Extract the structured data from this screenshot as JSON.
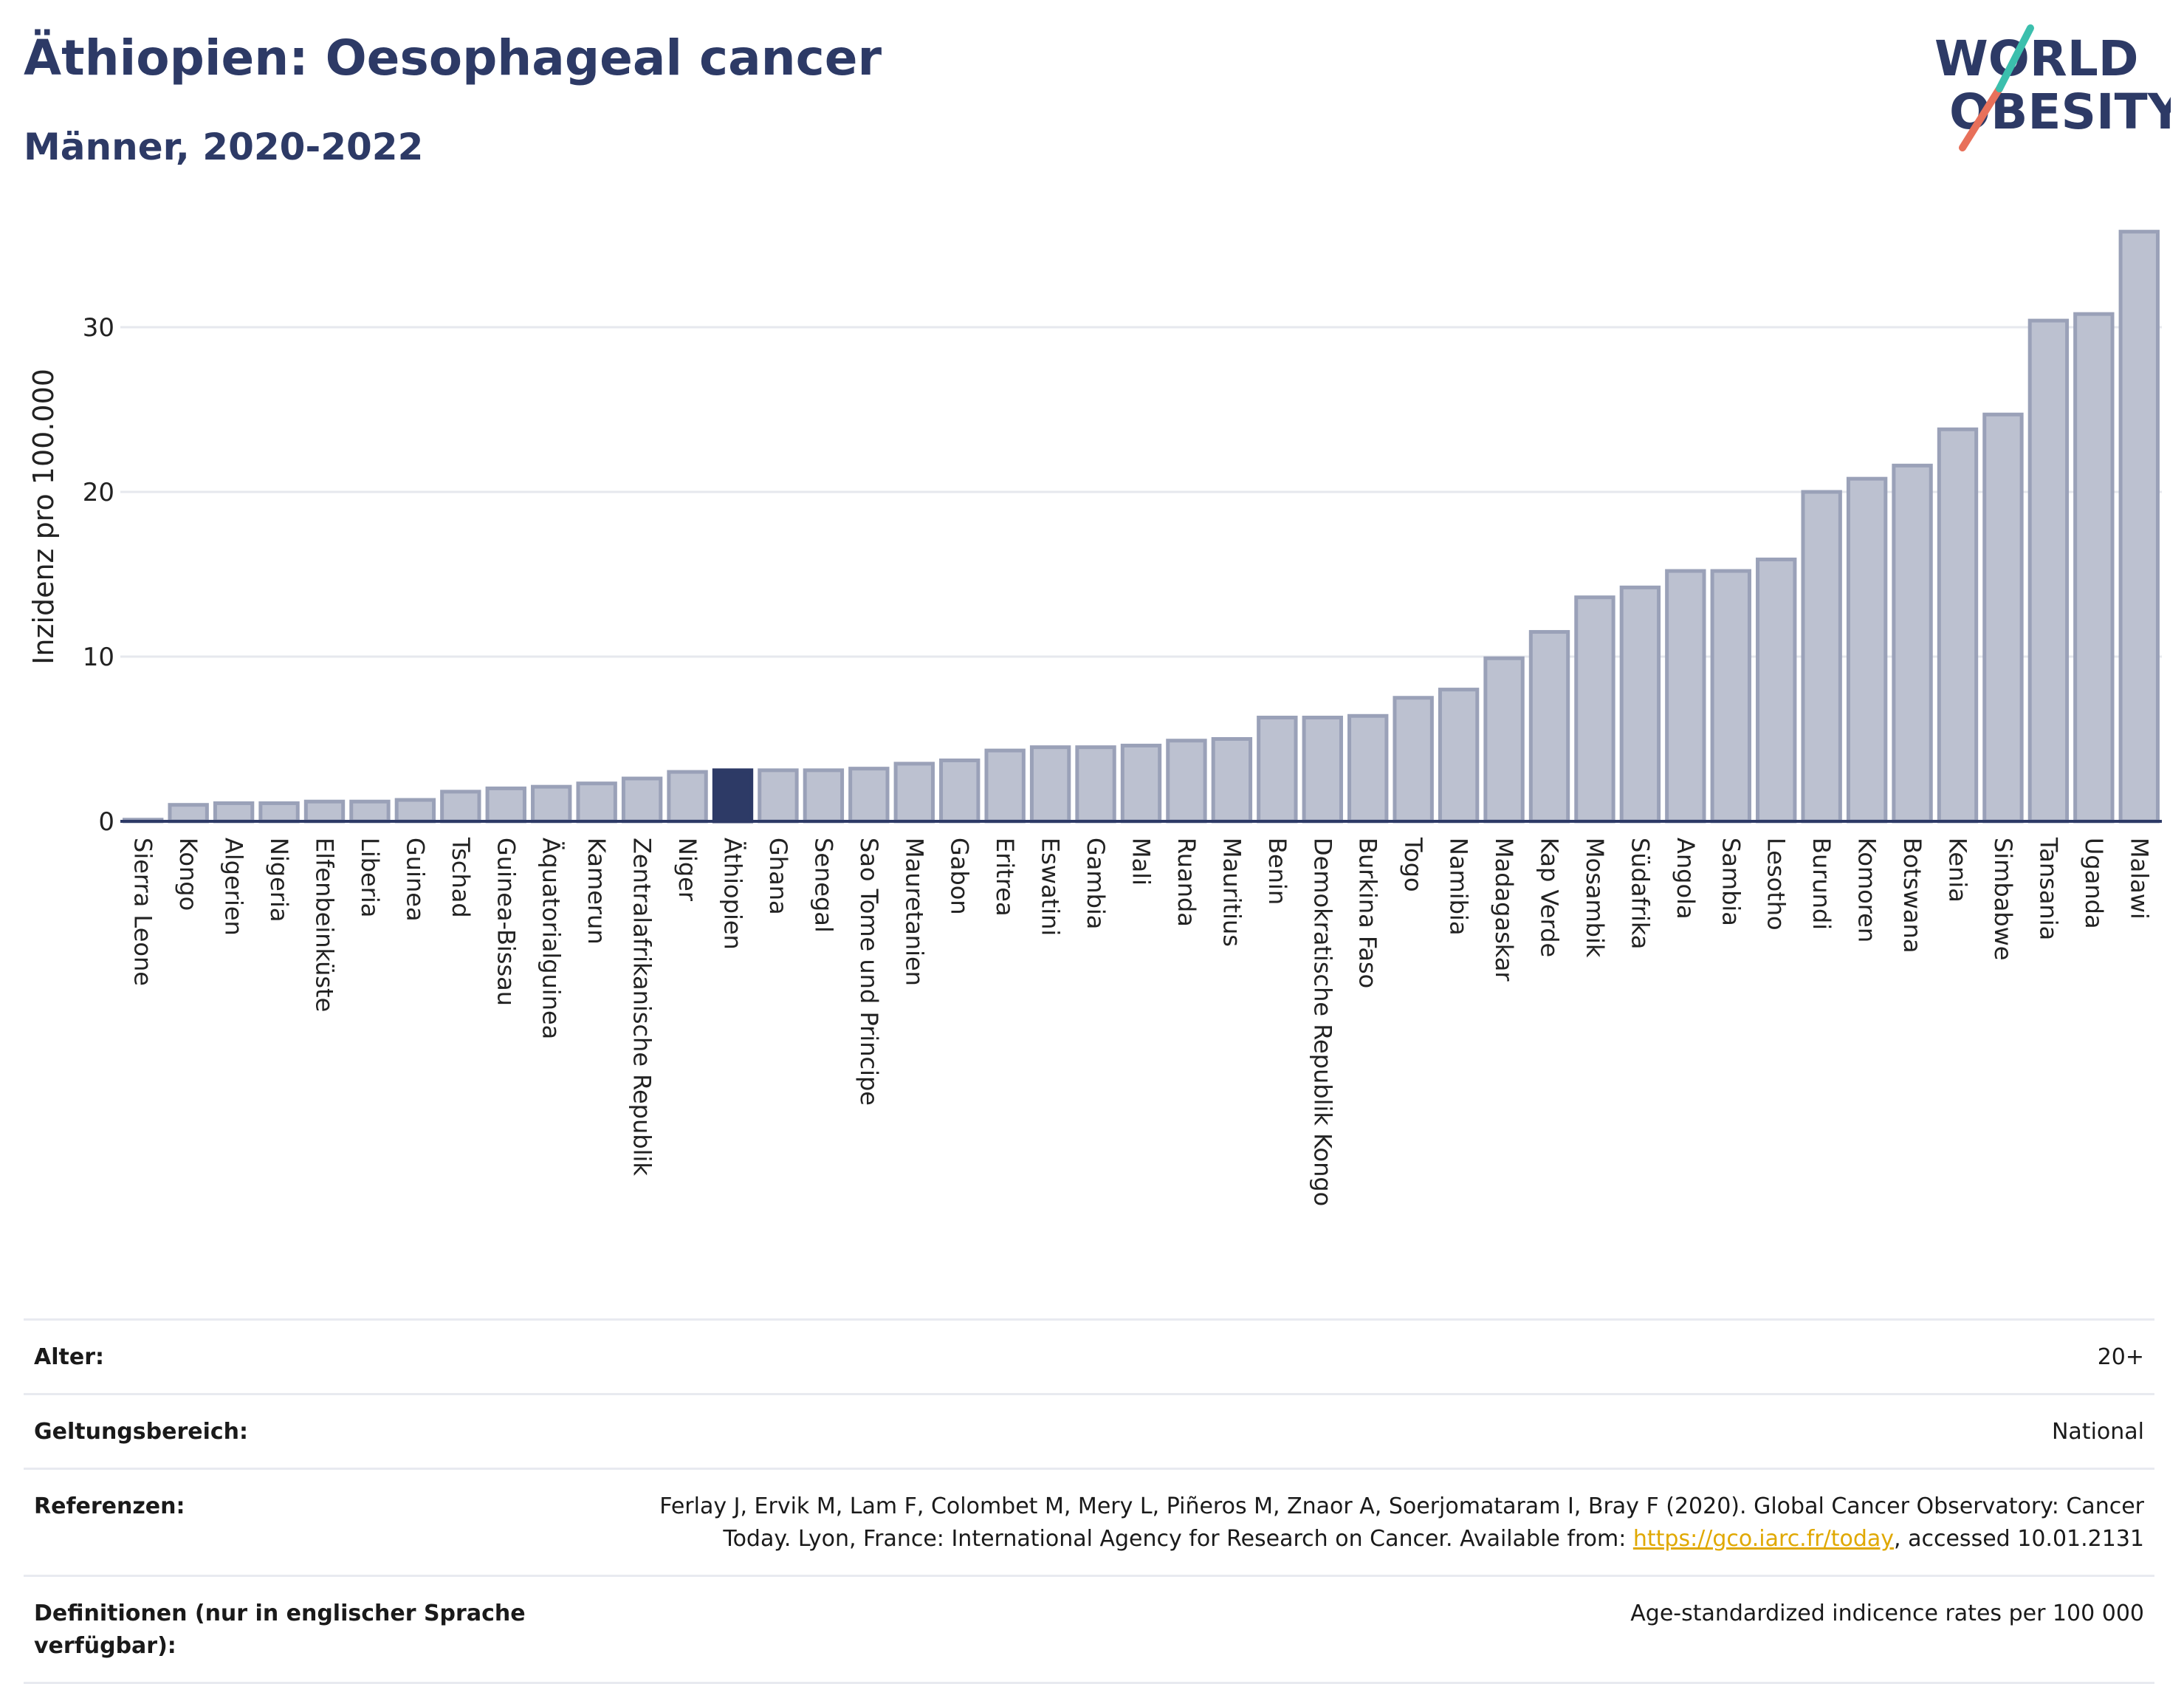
{
  "header": {
    "title": "Äthiopien: Oesophageal cancer",
    "subtitle": "Männer, 2020-2022"
  },
  "logo": {
    "line1": "WORLD",
    "line2": "OBESITY"
  },
  "chart_data": {
    "type": "bar",
    "ylabel": "Inzidenz pro 100.000",
    "xlabel": "",
    "ylim": [
      0,
      37
    ],
    "yticks": [
      0,
      10,
      20,
      30
    ],
    "grid": true,
    "highlight": "Äthiopien",
    "colors": {
      "bar": "#bcc1d0",
      "bar_edge": "#9aa1b8",
      "highlight": "#2d3a66",
      "grid": "#e6e8ee",
      "axis": "#2d3a66"
    },
    "categories": [
      "Sierra Leone",
      "Kongo",
      "Algerien",
      "Nigeria",
      "Elfenbeinküste",
      "Liberia",
      "Guinea",
      "Tschad",
      "Guinea-Bissau",
      "Äquatorialguinea",
      "Kamerun",
      "Zentralafrikanische Republik",
      "Niger",
      "Äthiopien",
      "Ghana",
      "Senegal",
      "Sao Tome und Principe",
      "Mauretanien",
      "Gabon",
      "Eritrea",
      "Eswatini",
      "Gambia",
      "Mali",
      "Ruanda",
      "Mauritius",
      "Benin",
      "Demokratische Republik Kongo",
      "Burkina Faso",
      "Togo",
      "Namibia",
      "Madagaskar",
      "Kap Verde",
      "Mosambik",
      "Südafrika",
      "Angola",
      "Sambia",
      "Lesotho",
      "Burundi",
      "Komoren",
      "Botswana",
      "Kenia",
      "Simbabwe",
      "Tansania",
      "Uganda",
      "Malawi"
    ],
    "values": [
      0.1,
      1.0,
      1.1,
      1.1,
      1.2,
      1.2,
      1.3,
      1.8,
      2.0,
      2.1,
      2.3,
      2.6,
      3.0,
      3.1,
      3.1,
      3.1,
      3.2,
      3.5,
      3.7,
      4.3,
      4.5,
      4.5,
      4.6,
      4.9,
      5.0,
      6.3,
      6.3,
      6.4,
      7.5,
      8.0,
      9.9,
      11.5,
      13.6,
      14.2,
      15.2,
      15.2,
      15.9,
      20.0,
      20.8,
      21.6,
      23.8,
      24.7,
      30.4,
      30.8,
      35.8
    ]
  },
  "meta": {
    "rows": [
      {
        "key": "Alter:",
        "value": "20+"
      },
      {
        "key": "Geltungsbereich:",
        "value": "National"
      }
    ],
    "references": {
      "key": "Referenzen:",
      "line1": "Ferlay J, Ervik M, Lam F, Colombet M, Mery L, Piñeros M, Znaor A, Soerjomataram I, Bray F (2020). Global Cancer Observatory: Cancer",
      "line2_pre": "Today. Lyon, France: International Agency for Research on Cancer. Available from: ",
      "link": "https://gco.iarc.fr/today",
      "line2_post": ", accessed 10.01.2131"
    },
    "definitions": {
      "key": "Definitionen (nur in englischer Sprache verfügbar):",
      "value": "Age-standardized indicence rates per 100 000"
    }
  }
}
